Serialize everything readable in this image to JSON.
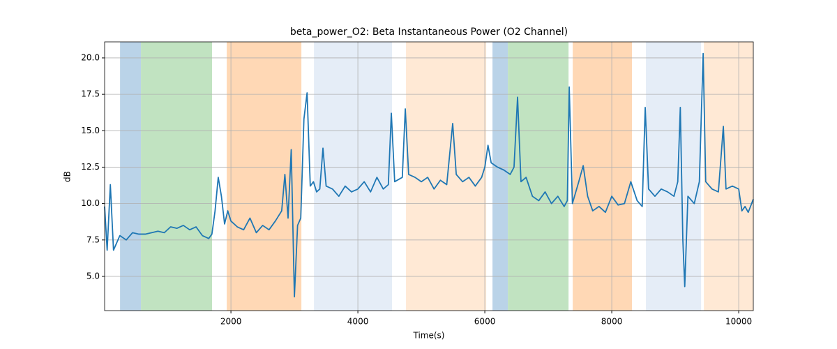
{
  "chart_data": {
    "type": "line",
    "title": "beta_power_O2: Beta Instantaneous Power (O2 Channel)",
    "xlabel": "Time(s)",
    "ylabel": "dB",
    "xlim": [
      10,
      10230
    ],
    "ylim": [
      2.65,
      21.1
    ],
    "xticks": [
      2000,
      4000,
      6000,
      8000,
      10000
    ],
    "yticks": [
      {
        "value": 5,
        "label": "5.0"
      },
      {
        "value": 7.5,
        "label": "7.5"
      },
      {
        "value": 10,
        "label": "10.0"
      },
      {
        "value": 12.5,
        "label": "12.5"
      },
      {
        "value": 15,
        "label": "15.0"
      },
      {
        "value": 17.5,
        "label": "17.5"
      },
      {
        "value": 20,
        "label": "20.0"
      }
    ],
    "grid": true,
    "spans": [
      {
        "start": 253,
        "end": 582,
        "color": "#bad3e8"
      },
      {
        "start": 582,
        "end": 1703,
        "color": "#c1e3c1"
      },
      {
        "start": 1934,
        "end": 3110,
        "color": "#ffd8b5"
      },
      {
        "start": 3308,
        "end": 4538,
        "color": "#e5edf7"
      },
      {
        "start": 4758,
        "end": 6022,
        "color": "#ffe9d5"
      },
      {
        "start": 6121,
        "end": 6363,
        "color": "#bad3e8"
      },
      {
        "start": 6363,
        "end": 7319,
        "color": "#c1e3c1"
      },
      {
        "start": 7385,
        "end": 8319,
        "color": "#ffd8b5"
      },
      {
        "start": 8538,
        "end": 9407,
        "color": "#e5edf7"
      },
      {
        "start": 9451,
        "end": 10230,
        "color": "#ffe9d5"
      }
    ],
    "series": [
      {
        "color": "#1f77b4",
        "x": [
          10,
          50,
          100,
          150,
          250,
          350,
          450,
          550,
          650,
          750,
          850,
          950,
          1050,
          1150,
          1250,
          1350,
          1450,
          1550,
          1650,
          1700,
          1750,
          1800,
          1850,
          1900,
          1950,
          2000,
          2100,
          2200,
          2300,
          2400,
          2500,
          2600,
          2700,
          2800,
          2850,
          2900,
          2950,
          3000,
          3050,
          3100,
          3150,
          3200,
          3250,
          3300,
          3350,
          3400,
          3450,
          3500,
          3600,
          3700,
          3800,
          3900,
          4000,
          4100,
          4200,
          4300,
          4400,
          4480,
          4527,
          4580,
          4700,
          4747,
          4800,
          4900,
          5000,
          5100,
          5200,
          5300,
          5400,
          5494,
          5550,
          5650,
          5750,
          5850,
          5950,
          6000,
          6050,
          6100,
          6200,
          6300,
          6400,
          6460,
          6516,
          6570,
          6650,
          6750,
          6850,
          6950,
          7050,
          7150,
          7250,
          7300,
          7330,
          7380,
          7480,
          7550,
          7620,
          7700,
          7800,
          7900,
          8000,
          8100,
          8200,
          8300,
          8400,
          8480,
          8527,
          8580,
          8680,
          8780,
          8880,
          8980,
          9040,
          9080,
          9120,
          9150,
          9200,
          9300,
          9380,
          9440,
          9480,
          9580,
          9680,
          9758,
          9800,
          9900,
          10000,
          10050,
          10100,
          10150,
          10230
        ],
        "values": [
          9.8,
          6.8,
          11.3,
          6.8,
          7.8,
          7.5,
          8.0,
          7.9,
          7.9,
          8.0,
          8.1,
          8.0,
          8.4,
          8.3,
          8.5,
          8.2,
          8.4,
          7.8,
          7.6,
          7.9,
          9.5,
          11.8,
          10.5,
          8.6,
          9.5,
          8.8,
          8.4,
          8.2,
          9.0,
          8.0,
          8.5,
          8.2,
          8.8,
          9.5,
          12.0,
          9.0,
          13.7,
          3.6,
          8.5,
          9.0,
          15.8,
          17.6,
          11.2,
          11.5,
          10.8,
          11.0,
          13.8,
          11.2,
          11.0,
          10.5,
          11.2,
          10.8,
          11.0,
          11.5,
          10.8,
          11.8,
          11.0,
          11.3,
          16.2,
          11.5,
          11.8,
          16.5,
          12.0,
          11.8,
          11.5,
          11.8,
          11.0,
          11.6,
          11.3,
          15.5,
          12.0,
          11.5,
          11.8,
          11.2,
          11.8,
          12.5,
          14.0,
          12.8,
          12.5,
          12.3,
          12.0,
          12.5,
          17.3,
          11.5,
          11.8,
          10.5,
          10.2,
          10.8,
          10.0,
          10.5,
          9.8,
          10.2,
          18.0,
          10.0,
          11.5,
          12.6,
          10.5,
          9.5,
          9.8,
          9.4,
          10.5,
          9.9,
          10.0,
          11.5,
          10.2,
          9.8,
          16.6,
          11.0,
          10.5,
          11.0,
          10.8,
          10.5,
          11.5,
          16.6,
          7.5,
          4.3,
          10.5,
          10.0,
          11.5,
          20.3,
          11.5,
          11.0,
          10.8,
          15.3,
          11.0,
          11.2,
          11.0,
          9.5,
          9.8,
          9.4,
          10.3
        ]
      }
    ]
  }
}
